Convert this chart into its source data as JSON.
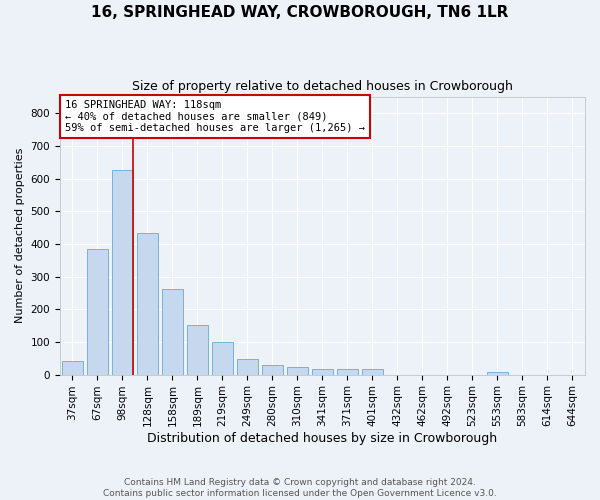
{
  "title": "16, SPRINGHEAD WAY, CROWBOROUGH, TN6 1LR",
  "subtitle": "Size of property relative to detached houses in Crowborough",
  "xlabel": "Distribution of detached houses by size in Crowborough",
  "ylabel": "Number of detached properties",
  "categories": [
    "37sqm",
    "67sqm",
    "98sqm",
    "128sqm",
    "158sqm",
    "189sqm",
    "219sqm",
    "249sqm",
    "280sqm",
    "310sqm",
    "341sqm",
    "371sqm",
    "401sqm",
    "432sqm",
    "462sqm",
    "492sqm",
    "523sqm",
    "553sqm",
    "583sqm",
    "614sqm",
    "644sqm"
  ],
  "values": [
    42,
    383,
    625,
    435,
    262,
    153,
    99,
    48,
    30,
    22,
    18,
    18,
    18,
    0,
    0,
    0,
    0,
    8,
    0,
    0,
    0
  ],
  "bar_color": "#c5d8ed",
  "bar_edge_color": "#6aaad4",
  "highlight_line_color": "#cc0000",
  "highlight_bar_index": 2,
  "annotation_line1": "16 SPRINGHEAD WAY: 118sqm",
  "annotation_line2": "← 40% of detached houses are smaller (849)",
  "annotation_line3": "59% of semi-detached houses are larger (1,265) →",
  "annotation_box_facecolor": "#ffffff",
  "annotation_box_edgecolor": "#cc0000",
  "ylim": [
    0,
    850
  ],
  "yticks": [
    0,
    100,
    200,
    300,
    400,
    500,
    600,
    700,
    800
  ],
  "footer_line1": "Contains HM Land Registry data © Crown copyright and database right 2024.",
  "footer_line2": "Contains public sector information licensed under the Open Government Licence v3.0.",
  "background_color": "#edf2f9",
  "grid_color": "#ffffff",
  "title_fontsize": 11,
  "subtitle_fontsize": 9,
  "xlabel_fontsize": 9,
  "ylabel_fontsize": 8,
  "tick_fontsize": 7.5,
  "annotation_fontsize": 7.5,
  "footer_fontsize": 6.5
}
